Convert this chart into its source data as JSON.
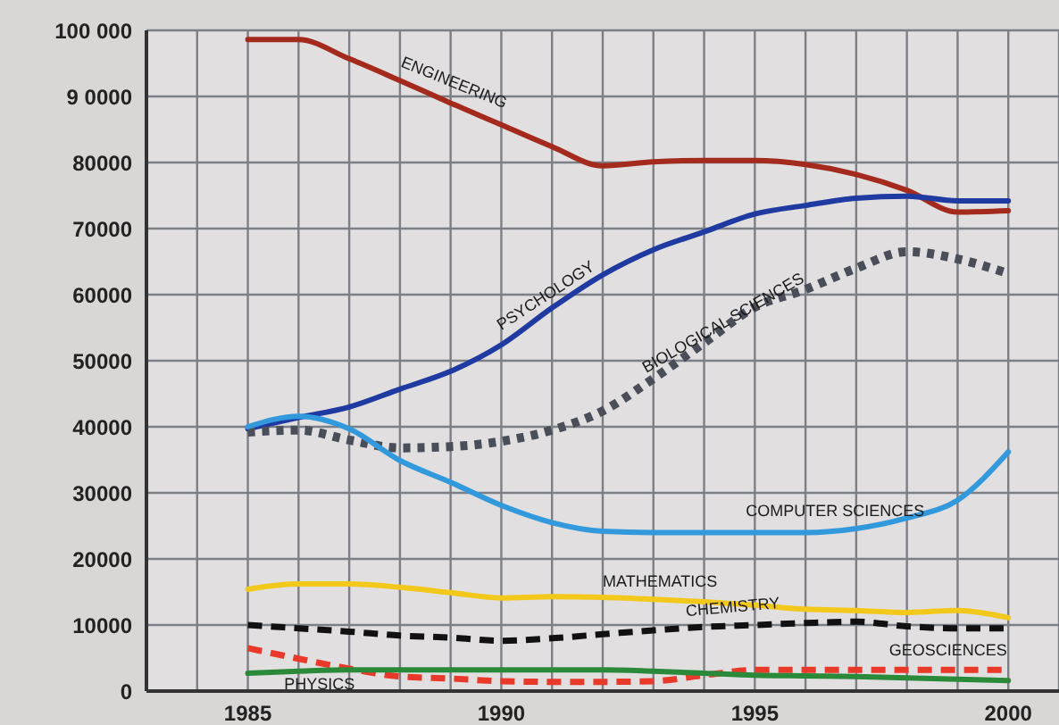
{
  "chart_data": {
    "type": "line",
    "x": [
      1985,
      1986,
      1987,
      1988,
      1989,
      1990,
      1991,
      1992,
      1993,
      1994,
      1995,
      1996,
      1997,
      1998,
      1999,
      2000
    ],
    "series": [
      {
        "name": "ENGINEERING",
        "color": "#a52a1e",
        "line_style": "solid",
        "values": [
          98600,
          98600,
          95700,
          92400,
          89000,
          85700,
          82400,
          79500,
          80100,
          80300,
          80300,
          79700,
          78200,
          75800,
          72500,
          72700
        ]
      },
      {
        "name": "PSYCHOLOGY",
        "color": "#1f3aa0",
        "line_style": "solid",
        "values": [
          39700,
          41400,
          43000,
          45700,
          48400,
          52400,
          58000,
          63000,
          66800,
          69500,
          72200,
          73500,
          74600,
          74900,
          74200,
          74200
        ]
      },
      {
        "name": "BIOLOGICAL SCIENCES",
        "color": "#4a4e58",
        "line_style": "dotted",
        "values": [
          39200,
          39500,
          38000,
          36800,
          37000,
          37800,
          39500,
          42400,
          47300,
          52700,
          58100,
          60800,
          64000,
          66500,
          65400,
          63200
        ]
      },
      {
        "name": "COMPUTER SCIENCES",
        "color": "#3399dd",
        "line_style": "solid",
        "values": [
          40000,
          41600,
          39700,
          34900,
          31600,
          28100,
          25500,
          24200,
          24000,
          24000,
          24000,
          24000,
          24600,
          26200,
          28900,
          36200
        ]
      },
      {
        "name": "MATHEMATICS",
        "color": "#f2c81a",
        "line_style": "solid",
        "values": [
          15400,
          16200,
          16200,
          15700,
          14900,
          14100,
          14300,
          14200,
          13900,
          13500,
          13000,
          12400,
          12200,
          11900,
          12200,
          11100
        ]
      },
      {
        "name": "CHEMISTRY",
        "color": "#111111",
        "line_style": "dashed",
        "values": [
          10000,
          9500,
          9000,
          8400,
          8100,
          7600,
          8000,
          8600,
          9200,
          9700,
          10000,
          10300,
          10500,
          9800,
          9500,
          9500
        ]
      },
      {
        "name": "GEOSCIENCES",
        "color": "#e8392a",
        "line_style": "dashed",
        "values": [
          6500,
          4900,
          3400,
          2200,
          1900,
          1500,
          1400,
          1400,
          1500,
          2400,
          3200,
          3200,
          3200,
          3200,
          3200,
          3200
        ]
      },
      {
        "name": "PHYSICS",
        "color": "#2a8a3a",
        "line_style": "solid",
        "values": [
          2700,
          3000,
          3200,
          3200,
          3200,
          3200,
          3200,
          3200,
          3000,
          2700,
          2400,
          2300,
          2200,
          2000,
          1800,
          1600
        ]
      }
    ],
    "xlim": [
      1983,
      2001
    ],
    "xticks": [
      {
        "value": 1983,
        "label": null
      },
      {
        "value": 1984,
        "label": null
      },
      1985,
      {
        "value": 1986,
        "label": null
      },
      {
        "value": 1987,
        "label": null
      },
      {
        "value": 1988,
        "label": null
      },
      {
        "value": 1989,
        "label": null
      },
      1990,
      {
        "value": 1991,
        "label": null
      },
      {
        "value": 1992,
        "label": null
      },
      {
        "value": 1993,
        "label": null
      },
      {
        "value": 1994,
        "label": null
      },
      1995,
      {
        "value": 1996,
        "label": null
      },
      {
        "value": 1997,
        "label": null
      },
      {
        "value": 1998,
        "label": null
      },
      {
        "value": 1999,
        "label": null
      },
      2000,
      {
        "value": 2001,
        "label": null
      }
    ],
    "ylim": [
      0,
      100000
    ],
    "yticks": [
      {
        "value": 0,
        "label": "0"
      },
      {
        "value": 10000,
        "label": "10000"
      },
      {
        "value": 20000,
        "label": "20000"
      },
      {
        "value": 30000,
        "label": "30000"
      },
      {
        "value": 40000,
        "label": "40000"
      },
      {
        "value": 50000,
        "label": "50000"
      },
      {
        "value": 60000,
        "label": "60000"
      },
      {
        "value": 70000,
        "label": "70000"
      },
      {
        "value": 80000,
        "label": "80000"
      },
      {
        "value": 90000,
        "label": "9 0000"
      },
      {
        "value": 100000,
        "label": "100 000"
      }
    ],
    "grid": true,
    "legend": false,
    "marker": "none"
  }
}
